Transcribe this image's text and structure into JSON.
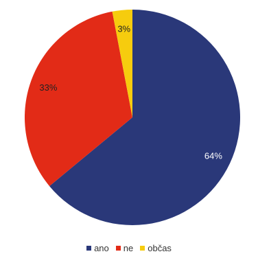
{
  "chart_data": {
    "type": "pie",
    "categories": [
      "ano",
      "ne",
      "občas"
    ],
    "values": [
      64,
      33,
      3
    ],
    "data_labels": [
      "64%",
      "33%",
      "3%"
    ],
    "colors": [
      "#2a3879",
      "#e22b17",
      "#f6cc0e"
    ],
    "legend_position": "bottom",
    "start": "top, clockwise"
  }
}
